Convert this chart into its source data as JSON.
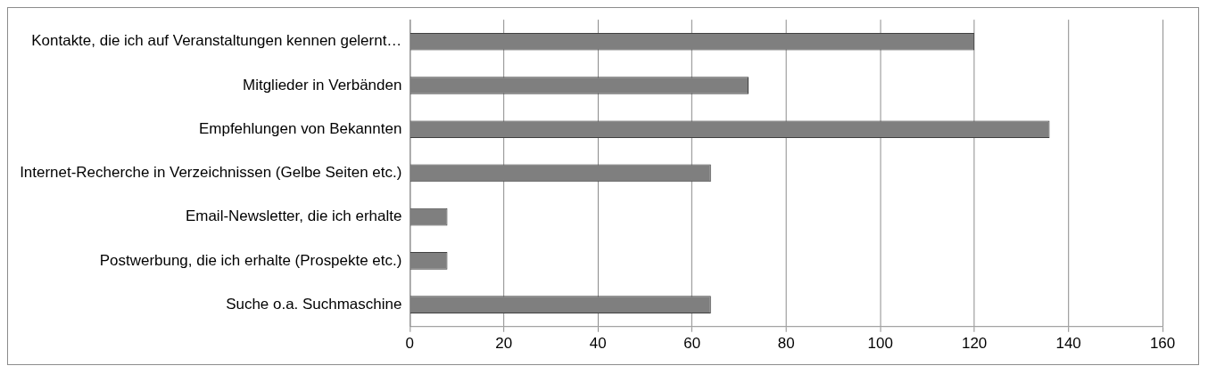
{
  "chart_data": {
    "type": "bar",
    "orientation": "horizontal",
    "categories": [
      "Kontakte, die ich auf Veranstaltungen kennen gelernt…",
      "Mitglieder in Verbänden",
      "Empfehlungen von Bekannten",
      "Internet-Recherche in Verzeichnissen (Gelbe Seiten etc.)",
      "Email-Newsletter, die ich erhalte",
      "Postwerbung, die ich erhalte (Prospekte etc.)",
      "Suche o.a. Suchmaschine"
    ],
    "values": [
      120,
      72,
      136,
      64,
      8,
      8,
      64
    ],
    "color": "#7f7f7f",
    "xlim": [
      0,
      160
    ],
    "xticks": [
      0,
      20,
      40,
      60,
      80,
      100,
      120,
      140,
      160
    ],
    "grid": "x",
    "legend": false
  }
}
